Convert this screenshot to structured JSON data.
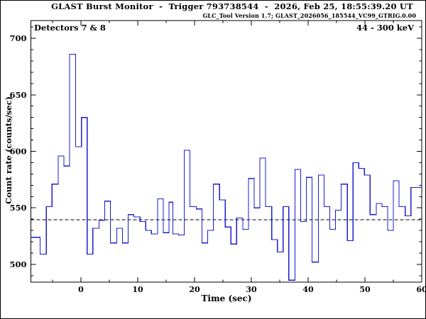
{
  "header": {
    "title": "GLAST Burst Monitor  -  Trigger 793738544  -  2026, Feb 25, 18:55:39.20 UT",
    "subtitle": "GLC_Tool Version 1.7; GLAST_2026056_185544_VC99_GTRIG.0.00"
  },
  "annotations": {
    "detectors": "Detectors 7 & 8",
    "energy_range": "44 - 300 keV"
  },
  "colors": {
    "line": "#1c1cd0",
    "axes": "#000000",
    "background": "#ffffff"
  },
  "chart_data": {
    "type": "line",
    "subtype": "step-histogram",
    "title": "GLAST Burst Monitor  -  Trigger 793738544  -  2026, Feb 25, 18:55:39.20 UT",
    "subtitle": "GLC_Tool Version 1.7; GLAST_2026056_185544_VC99_GTRIG.0.00",
    "xlabel": "Time (sec)",
    "ylabel": "Count rate (counts/sec)",
    "xlim": [
      -8.81,
      60
    ],
    "ylim": [
      484.3,
      715.7
    ],
    "x_major_ticks": [
      0,
      10,
      20,
      30,
      40,
      50,
      60
    ],
    "x_minor_step": 5,
    "y_major_ticks": [
      500,
      550,
      600,
      650,
      700
    ],
    "y_minor_step": 10,
    "grid": false,
    "legend": false,
    "line_color": "#1c1cd0",
    "background_level": 539.5,
    "background_line_style": "dashed",
    "bin_edges": [
      -8.81,
      -7.2,
      -6.1,
      -5.1,
      -4.0,
      -3.0,
      -2.0,
      -0.95,
      0.1,
      1.1,
      2.1,
      3.2,
      4.2,
      5.2,
      6.3,
      7.3,
      8.3,
      9.3,
      10.4,
      11.4,
      12.4,
      13.5,
      14.5,
      15.5,
      16.2,
      17.2,
      18.2,
      19.2,
      20.3,
      21.3,
      22.3,
      23.3,
      24.4,
      25.4,
      26.4,
      27.4,
      28.5,
      29.5,
      30.5,
      31.5,
      32.5,
      33.6,
      34.6,
      35.6,
      36.6,
      37.7,
      38.7,
      39.7,
      40.7,
      41.8,
      42.8,
      43.8,
      44.8,
      45.8,
      46.9,
      47.9,
      48.9,
      49.9,
      50.9,
      52.0,
      53.0,
      54.0,
      55.0,
      56.0,
      57.1,
      58.1,
      60
    ],
    "counts": [
      524,
      509,
      551,
      571,
      596,
      587,
      686,
      604,
      630,
      509,
      532,
      539,
      556,
      519,
      532,
      519,
      544,
      542,
      538,
      530,
      527,
      558,
      528,
      555,
      527,
      526,
      601,
      551,
      549,
      519,
      530,
      571,
      557,
      533,
      518,
      541,
      531,
      576,
      550,
      594,
      551,
      522,
      511,
      551,
      486,
      584,
      538,
      577,
      502,
      579,
      551,
      531,
      548,
      571,
      521,
      590,
      585,
      579,
      544,
      554,
      551,
      530,
      574,
      551,
      543,
      568
    ]
  }
}
